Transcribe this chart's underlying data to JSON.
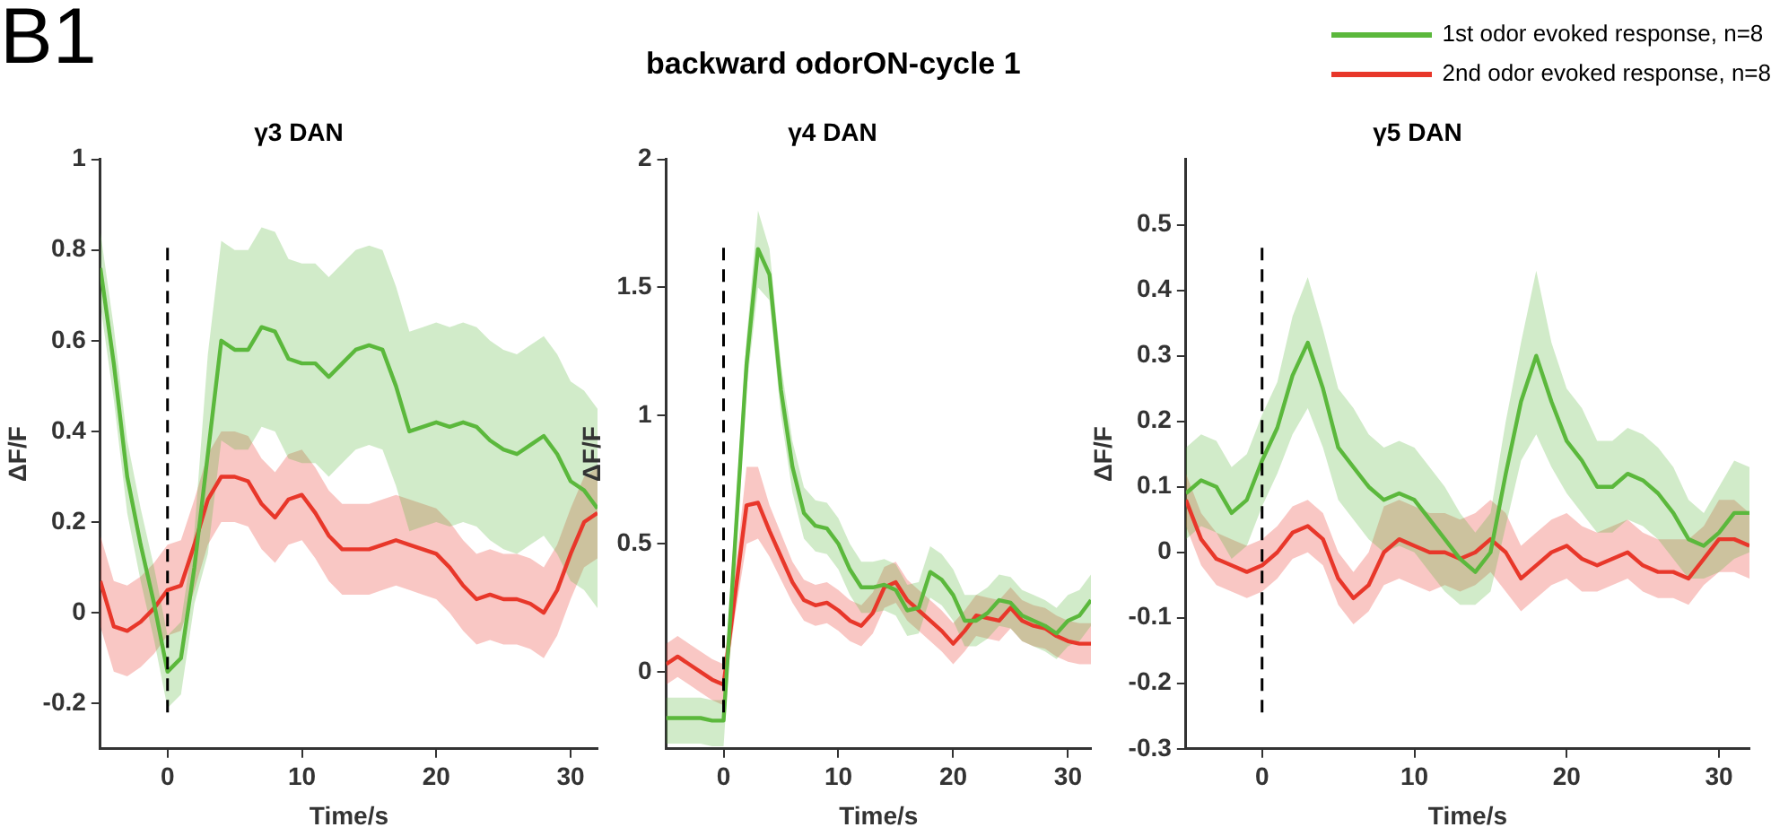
{
  "chart_data": [
    {
      "type": "line",
      "title": "γ3 DAN",
      "xlabel": "Time/s",
      "ylabel": "ΔF/F",
      "annotations": [
        "B1"
      ],
      "xlim": [
        -5,
        32
      ],
      "xticks": [
        0,
        10,
        20,
        30
      ],
      "ylim": [
        -0.3,
        1
      ],
      "yticks": [
        -0.2,
        0,
        0.2,
        0.4,
        0.6,
        0.8,
        1
      ],
      "grid": false,
      "legend": false,
      "marker": "none",
      "line_style": "solid",
      "ref_lines": [
        {
          "axis": "x",
          "value": 0,
          "color": "#000000",
          "line_style": "dashed"
        }
      ],
      "x": [
        -5,
        -4,
        -3,
        -2,
        -1,
        0,
        1,
        2,
        3,
        4,
        5,
        6,
        7,
        8,
        9,
        10,
        11,
        12,
        13,
        14,
        15,
        16,
        17,
        18,
        19,
        20,
        21,
        22,
        23,
        24,
        25,
        26,
        27,
        28,
        29,
        30,
        31,
        32
      ],
      "series": [
        {
          "color": "#5bb83c",
          "values": [
            0.76,
            0.55,
            0.3,
            0.15,
            0.02,
            -0.13,
            -0.1,
            0.1,
            0.35,
            0.6,
            0.58,
            0.58,
            0.63,
            0.62,
            0.56,
            0.55,
            0.55,
            0.52,
            0.55,
            0.58,
            0.59,
            0.58,
            0.5,
            0.4,
            0.41,
            0.42,
            0.41,
            0.42,
            0.41,
            0.38,
            0.36,
            0.35,
            0.37,
            0.39,
            0.35,
            0.29,
            0.27,
            0.23
          ],
          "lower": [
            0.68,
            0.47,
            0.22,
            0.07,
            -0.06,
            -0.21,
            -0.18,
            0.02,
            0.13,
            0.38,
            0.36,
            0.36,
            0.41,
            0.4,
            0.34,
            0.33,
            0.33,
            0.3,
            0.33,
            0.36,
            0.37,
            0.36,
            0.28,
            0.18,
            0.19,
            0.2,
            0.19,
            0.2,
            0.19,
            0.16,
            0.14,
            0.13,
            0.15,
            0.17,
            0.13,
            0.07,
            0.05,
            0.01
          ],
          "upper": [
            0.84,
            0.63,
            0.38,
            0.23,
            0.1,
            -0.05,
            -0.02,
            0.18,
            0.57,
            0.82,
            0.8,
            0.8,
            0.85,
            0.84,
            0.78,
            0.77,
            0.77,
            0.74,
            0.77,
            0.8,
            0.81,
            0.8,
            0.72,
            0.62,
            0.63,
            0.64,
            0.63,
            0.64,
            0.63,
            0.6,
            0.58,
            0.57,
            0.59,
            0.61,
            0.57,
            0.51,
            0.49,
            0.45
          ]
        },
        {
          "color": "#e8372a",
          "values": [
            0.07,
            -0.03,
            -0.04,
            -0.02,
            0.01,
            0.05,
            0.06,
            0.15,
            0.25,
            0.3,
            0.3,
            0.29,
            0.24,
            0.21,
            0.25,
            0.26,
            0.22,
            0.17,
            0.14,
            0.14,
            0.14,
            0.15,
            0.16,
            0.15,
            0.14,
            0.13,
            0.1,
            0.06,
            0.03,
            0.04,
            0.03,
            0.03,
            0.02,
            0.0,
            0.05,
            0.13,
            0.2,
            0.22
          ],
          "lower": [
            -0.03,
            -0.13,
            -0.14,
            -0.12,
            -0.09,
            -0.05,
            -0.04,
            0.05,
            0.15,
            0.2,
            0.2,
            0.19,
            0.14,
            0.11,
            0.15,
            0.16,
            0.12,
            0.07,
            0.04,
            0.04,
            0.04,
            0.05,
            0.06,
            0.05,
            0.04,
            0.03,
            0.0,
            -0.04,
            -0.07,
            -0.06,
            -0.07,
            -0.07,
            -0.08,
            -0.1,
            -0.05,
            0.03,
            0.1,
            0.12
          ],
          "upper": [
            0.17,
            0.07,
            0.06,
            0.08,
            0.11,
            0.15,
            0.16,
            0.25,
            0.35,
            0.4,
            0.4,
            0.39,
            0.34,
            0.31,
            0.35,
            0.36,
            0.32,
            0.27,
            0.24,
            0.24,
            0.24,
            0.25,
            0.26,
            0.25,
            0.24,
            0.23,
            0.2,
            0.16,
            0.13,
            0.14,
            0.13,
            0.13,
            0.12,
            0.1,
            0.15,
            0.23,
            0.3,
            0.32
          ]
        }
      ]
    },
    {
      "type": "line",
      "title": "γ4 DAN",
      "xlabel": "Time/s",
      "ylabel": "ΔF/F",
      "annotations": [
        "backward odorON-cycle 1"
      ],
      "xlim": [
        -5,
        32
      ],
      "xticks": [
        0,
        10,
        20,
        30
      ],
      "ylim": [
        -0.3,
        2
      ],
      "yticks": [
        0,
        0.5,
        1,
        1.5,
        2
      ],
      "grid": false,
      "legend": false,
      "marker": "none",
      "line_style": "solid",
      "ref_lines": [
        {
          "axis": "x",
          "value": 0,
          "color": "#000000",
          "line_style": "dashed"
        }
      ],
      "x": [
        -5,
        -4,
        -3,
        -2,
        -1,
        0,
        1,
        2,
        3,
        4,
        5,
        6,
        7,
        8,
        9,
        10,
        11,
        12,
        13,
        14,
        15,
        16,
        17,
        18,
        19,
        20,
        21,
        22,
        23,
        24,
        25,
        26,
        27,
        28,
        29,
        30,
        31,
        32
      ],
      "series": [
        {
          "color": "#5bb83c",
          "values": [
            -0.18,
            -0.18,
            -0.18,
            -0.18,
            -0.19,
            -0.19,
            0.5,
            1.2,
            1.65,
            1.55,
            1.1,
            0.8,
            0.62,
            0.57,
            0.56,
            0.5,
            0.4,
            0.33,
            0.33,
            0.34,
            0.32,
            0.24,
            0.25,
            0.39,
            0.36,
            0.3,
            0.2,
            0.2,
            0.23,
            0.28,
            0.27,
            0.22,
            0.2,
            0.18,
            0.15,
            0.2,
            0.22,
            0.28
          ],
          "lower": [
            -0.28,
            -0.28,
            -0.28,
            -0.28,
            -0.29,
            -0.29,
            0.4,
            1.1,
            1.5,
            1.45,
            1.0,
            0.7,
            0.52,
            0.47,
            0.46,
            0.4,
            0.3,
            0.23,
            0.23,
            0.24,
            0.22,
            0.14,
            0.15,
            0.29,
            0.26,
            0.2,
            0.1,
            0.1,
            0.13,
            0.18,
            0.17,
            0.12,
            0.1,
            0.08,
            0.05,
            0.1,
            0.12,
            0.18
          ],
          "upper": [
            -0.1,
            -0.1,
            -0.1,
            -0.1,
            -0.11,
            -0.11,
            0.6,
            1.3,
            1.8,
            1.65,
            1.2,
            0.9,
            0.72,
            0.67,
            0.66,
            0.6,
            0.5,
            0.43,
            0.43,
            0.44,
            0.42,
            0.34,
            0.35,
            0.49,
            0.46,
            0.4,
            0.3,
            0.3,
            0.33,
            0.38,
            0.37,
            0.32,
            0.3,
            0.28,
            0.25,
            0.3,
            0.32,
            0.38
          ]
        },
        {
          "color": "#e8372a",
          "values": [
            0.03,
            0.06,
            0.03,
            0.0,
            -0.03,
            -0.05,
            0.3,
            0.65,
            0.66,
            0.55,
            0.45,
            0.35,
            0.28,
            0.26,
            0.27,
            0.24,
            0.2,
            0.18,
            0.23,
            0.33,
            0.35,
            0.28,
            0.24,
            0.2,
            0.16,
            0.11,
            0.16,
            0.22,
            0.21,
            0.2,
            0.25,
            0.2,
            0.18,
            0.17,
            0.14,
            0.12,
            0.11,
            0.11
          ],
          "lower": [
            -0.05,
            -0.02,
            -0.05,
            -0.08,
            -0.11,
            -0.13,
            0.22,
            0.5,
            0.52,
            0.45,
            0.36,
            0.27,
            0.2,
            0.18,
            0.19,
            0.16,
            0.12,
            0.1,
            0.15,
            0.25,
            0.27,
            0.2,
            0.16,
            0.12,
            0.08,
            0.03,
            0.08,
            0.14,
            0.13,
            0.12,
            0.17,
            0.12,
            0.1,
            0.09,
            0.06,
            0.04,
            0.03,
            0.03
          ],
          "upper": [
            0.11,
            0.14,
            0.11,
            0.08,
            0.05,
            0.03,
            0.38,
            0.8,
            0.8,
            0.65,
            0.54,
            0.43,
            0.36,
            0.34,
            0.35,
            0.32,
            0.28,
            0.26,
            0.31,
            0.41,
            0.43,
            0.36,
            0.32,
            0.28,
            0.24,
            0.19,
            0.24,
            0.3,
            0.29,
            0.28,
            0.33,
            0.28,
            0.26,
            0.25,
            0.22,
            0.2,
            0.19,
            0.19
          ]
        }
      ]
    },
    {
      "type": "line",
      "title": "γ5 DAN",
      "xlabel": "Time/s",
      "ylabel": "ΔF/F",
      "xlim": [
        -5,
        32
      ],
      "xticks": [
        0,
        10,
        20,
        30
      ],
      "ylim": [
        -0.3,
        0.6
      ],
      "yticks": [
        -0.3,
        -0.2,
        -0.1,
        0,
        0.1,
        0.2,
        0.3,
        0.4,
        0.5
      ],
      "grid": false,
      "legend": "top right",
      "marker": "none",
      "line_style": "solid",
      "ref_lines": [
        {
          "axis": "x",
          "value": 0,
          "color": "#000000",
          "line_style": "dashed"
        }
      ],
      "x": [
        -5,
        -4,
        -3,
        -2,
        -1,
        0,
        1,
        2,
        3,
        4,
        5,
        6,
        7,
        8,
        9,
        10,
        11,
        12,
        13,
        14,
        15,
        16,
        17,
        18,
        19,
        20,
        21,
        22,
        23,
        24,
        25,
        26,
        27,
        28,
        29,
        30,
        31,
        32
      ],
      "series": [
        {
          "name": "1st odor evoked response,  n=8",
          "color": "#5bb83c",
          "values": [
            0.09,
            0.11,
            0.1,
            0.06,
            0.08,
            0.14,
            0.19,
            0.27,
            0.32,
            0.25,
            0.16,
            0.13,
            0.1,
            0.08,
            0.09,
            0.08,
            0.05,
            0.02,
            -0.01,
            -0.03,
            0.0,
            0.12,
            0.23,
            0.3,
            0.23,
            0.17,
            0.14,
            0.1,
            0.1,
            0.12,
            0.11,
            0.09,
            0.06,
            0.02,
            0.01,
            0.03,
            0.06,
            0.06
          ],
          "lower": [
            0.02,
            0.04,
            0.03,
            -0.01,
            0.01,
            0.07,
            0.12,
            0.18,
            0.22,
            0.16,
            0.08,
            0.05,
            0.02,
            0.0,
            0.01,
            0.0,
            -0.03,
            -0.06,
            -0.08,
            -0.08,
            -0.06,
            0.04,
            0.14,
            0.18,
            0.13,
            0.09,
            0.06,
            0.03,
            0.03,
            0.05,
            0.04,
            0.02,
            -0.01,
            -0.04,
            -0.04,
            -0.03,
            -0.01,
            0.0
          ],
          "upper": [
            0.16,
            0.18,
            0.17,
            0.13,
            0.15,
            0.21,
            0.26,
            0.36,
            0.42,
            0.34,
            0.25,
            0.22,
            0.18,
            0.16,
            0.17,
            0.16,
            0.13,
            0.1,
            0.06,
            0.03,
            0.06,
            0.2,
            0.32,
            0.43,
            0.32,
            0.25,
            0.22,
            0.17,
            0.17,
            0.19,
            0.18,
            0.16,
            0.13,
            0.08,
            0.06,
            0.1,
            0.14,
            0.13
          ]
        },
        {
          "name": "2nd odor evoked response,  n=8",
          "color": "#e8372a",
          "values": [
            0.08,
            0.02,
            -0.01,
            -0.02,
            -0.03,
            -0.02,
            0.0,
            0.03,
            0.04,
            0.02,
            -0.04,
            -0.07,
            -0.05,
            0.0,
            0.02,
            0.01,
            0.0,
            0.0,
            -0.01,
            0.0,
            0.02,
            0.0,
            -0.04,
            -0.02,
            0.0,
            0.01,
            -0.01,
            -0.02,
            -0.01,
            0.0,
            -0.02,
            -0.03,
            -0.03,
            -0.04,
            -0.01,
            0.02,
            0.02,
            0.01
          ],
          "lower": [
            0.04,
            -0.02,
            -0.05,
            -0.06,
            -0.07,
            -0.06,
            -0.04,
            -0.01,
            0.0,
            -0.02,
            -0.08,
            -0.11,
            -0.09,
            -0.05,
            -0.04,
            -0.05,
            -0.06,
            -0.05,
            -0.06,
            -0.05,
            -0.03,
            -0.06,
            -0.09,
            -0.07,
            -0.05,
            -0.04,
            -0.06,
            -0.06,
            -0.05,
            -0.04,
            -0.06,
            -0.07,
            -0.07,
            -0.08,
            -0.05,
            -0.03,
            -0.03,
            -0.04
          ],
          "upper": [
            0.12,
            0.06,
            0.03,
            0.02,
            0.01,
            0.02,
            0.04,
            0.07,
            0.08,
            0.06,
            0.0,
            -0.03,
            0.0,
            0.07,
            0.08,
            0.07,
            0.06,
            0.06,
            0.05,
            0.06,
            0.08,
            0.06,
            0.01,
            0.03,
            0.05,
            0.06,
            0.04,
            0.03,
            0.04,
            0.05,
            0.03,
            0.02,
            0.02,
            0.02,
            0.04,
            0.08,
            0.08,
            0.06
          ]
        }
      ]
    }
  ]
}
